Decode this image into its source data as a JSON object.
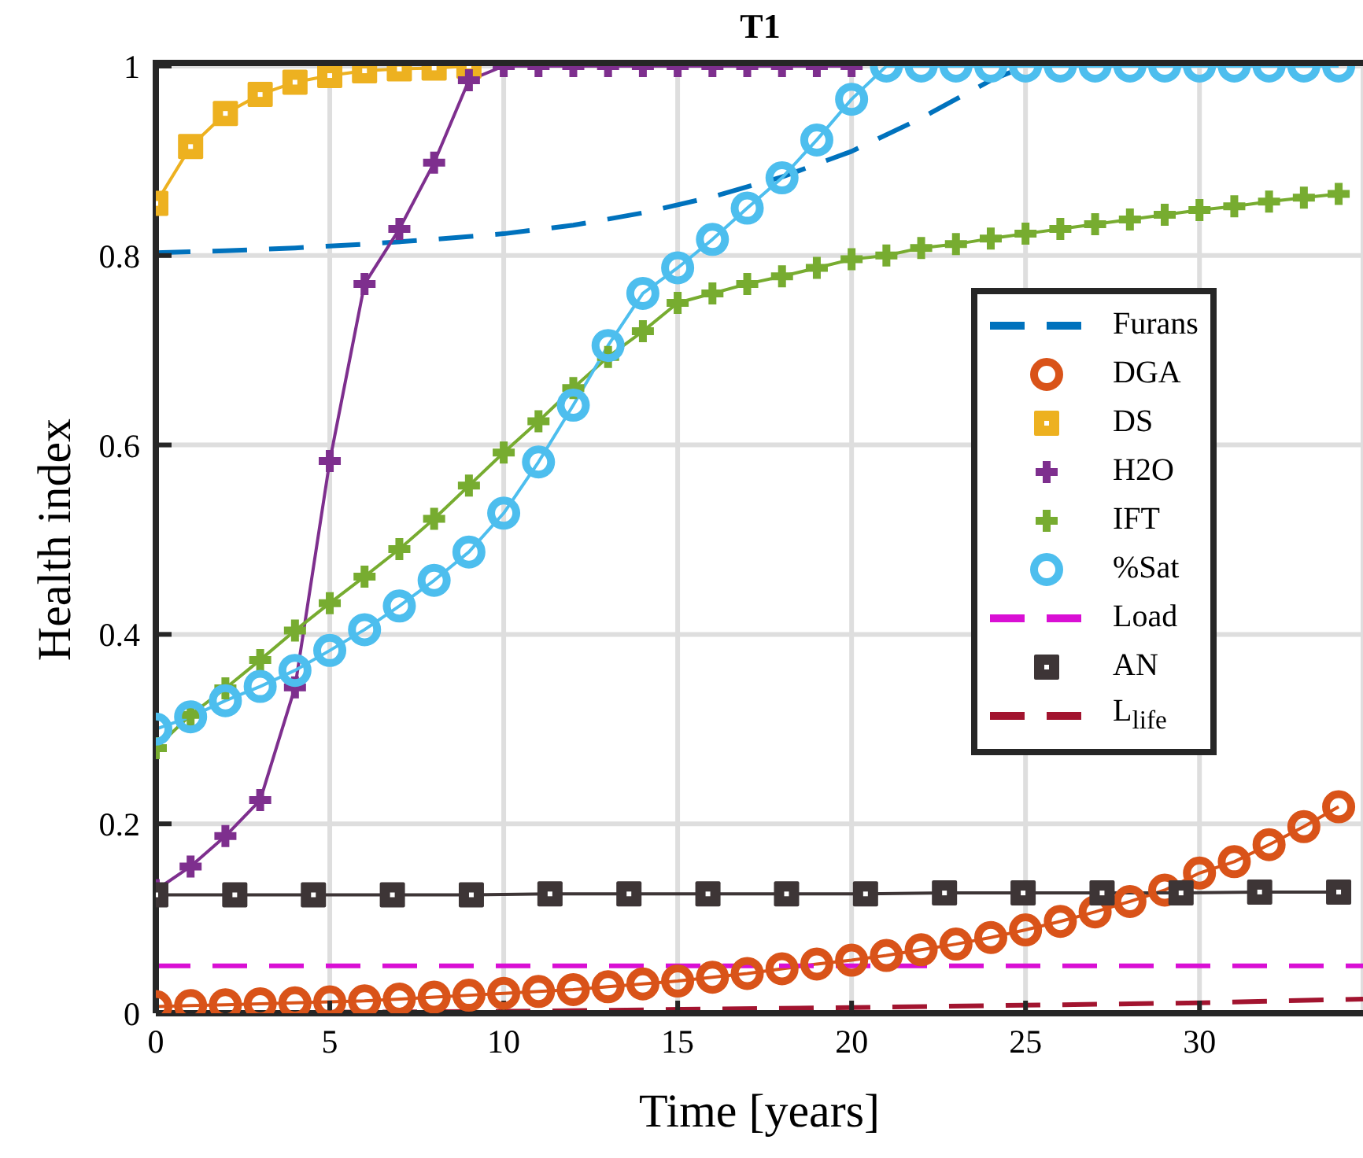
{
  "chart_data": {
    "type": "line",
    "title": "T1",
    "xlabel": "Time [years]",
    "ylabel": "Health index",
    "x": [
      0,
      1,
      2,
      3,
      4,
      5,
      6,
      7,
      8,
      9,
      10,
      11,
      12,
      13,
      14,
      15,
      16,
      17,
      18,
      19,
      20,
      21,
      22,
      23,
      24,
      25,
      26,
      27,
      28,
      29,
      30,
      31,
      32,
      33,
      34
    ],
    "series": [
      {
        "name": "Furans",
        "color": "#0072bd",
        "marker": "none",
        "line_style": "dashed",
        "x": [
          0,
          2,
          4,
          6,
          8,
          10,
          12,
          14,
          16,
          18,
          20,
          22,
          24,
          25
        ],
        "values": [
          0.803,
          0.805,
          0.808,
          0.812,
          0.817,
          0.823,
          0.832,
          0.845,
          0.862,
          0.883,
          0.91,
          0.945,
          0.985,
          1
        ]
      },
      {
        "name": "DGA",
        "color": "#d95319",
        "marker": "circle",
        "values": [
          0.007,
          0.008,
          0.009,
          0.01,
          0.011,
          0.012,
          0.013,
          0.015,
          0.017,
          0.019,
          0.021,
          0.023,
          0.025,
          0.028,
          0.031,
          0.034,
          0.038,
          0.042,
          0.047,
          0.052,
          0.056,
          0.061,
          0.067,
          0.073,
          0.08,
          0.088,
          0.097,
          0.107,
          0.118,
          0.13,
          0.148,
          0.16,
          0.178,
          0.197,
          0.218
        ]
      },
      {
        "name": "DS",
        "color": "#edb120",
        "marker": "square",
        "values": [
          0.855,
          0.915,
          0.95,
          0.97,
          0.983,
          0.99,
          0.995,
          0.997,
          0.998,
          1,
          null,
          null,
          null,
          null,
          null,
          null,
          null,
          null,
          null,
          null,
          null,
          null,
          null,
          null,
          null,
          null,
          null,
          null,
          null,
          null,
          null,
          null,
          null,
          null,
          null
        ]
      },
      {
        "name": "H2O",
        "color": "#7e2f8e",
        "marker": "cross",
        "values": [
          0.13,
          0.155,
          0.187,
          0.225,
          0.344,
          0.583,
          0.77,
          0.828,
          0.898,
          0.985,
          1,
          1,
          1,
          1,
          1,
          1,
          1,
          1,
          1,
          1,
          1,
          null,
          null,
          null,
          null,
          null,
          null,
          null,
          null,
          null,
          null,
          null,
          null,
          null,
          null
        ]
      },
      {
        "name": "IFT",
        "color": "#77ac30",
        "marker": "cross",
        "values": [
          0.28,
          0.315,
          0.343,
          0.373,
          0.404,
          0.433,
          0.461,
          0.49,
          0.522,
          0.557,
          0.592,
          0.625,
          0.66,
          0.693,
          0.72,
          0.75,
          0.76,
          0.77,
          0.778,
          0.787,
          0.796,
          0.8,
          0.808,
          0.812,
          0.818,
          0.823,
          0.828,
          0.833,
          0.838,
          0.843,
          0.848,
          0.852,
          0.857,
          0.861,
          0.865
        ]
      },
      {
        "name": "%Sat",
        "color": "#4dbeee",
        "marker": "circle",
        "values": [
          0.3,
          0.313,
          0.33,
          0.345,
          0.362,
          0.383,
          0.405,
          0.43,
          0.457,
          0.487,
          0.528,
          0.582,
          0.642,
          0.705,
          0.76,
          0.787,
          0.817,
          0.85,
          0.882,
          0.922,
          0.965,
          1,
          1,
          1,
          1,
          1,
          1,
          1,
          1,
          1,
          1,
          1,
          1,
          1,
          1
        ]
      },
      {
        "name": "Load",
        "color": "#d90fd4",
        "marker": "none",
        "line_style": "dashed",
        "x": [
          0,
          34.7
        ],
        "values": [
          0.05,
          0.05
        ]
      },
      {
        "name": "AN",
        "color": "#3d3536",
        "marker": "square",
        "x": [
          0,
          2.27,
          4.53,
          6.8,
          9.07,
          11.33,
          13.6,
          15.87,
          18.13,
          20.4,
          22.67,
          24.93,
          27.2,
          29.47,
          31.73,
          34
        ],
        "values": [
          0.125,
          0.125,
          0.125,
          0.125,
          0.125,
          0.126,
          0.126,
          0.126,
          0.126,
          0.126,
          0.127,
          0.127,
          0.127,
          0.127,
          0.128,
          0.128
        ]
      },
      {
        "name": "L$_{life}$",
        "color": "#a2142f",
        "marker": "none",
        "line_style": "dashed",
        "x": [
          0,
          10,
          20,
          30,
          34.7
        ],
        "values": [
          0,
          0.002,
          0.006,
          0.011,
          0.015
        ]
      }
    ],
    "xlim": [
      0,
      34.7
    ],
    "ylim": [
      0,
      1
    ],
    "xticks": [
      0,
      5,
      10,
      15,
      20,
      25,
      30
    ],
    "yticks": [
      0,
      0.2,
      0.4,
      0.6,
      0.8,
      1
    ],
    "grid": true,
    "legend": "right"
  }
}
